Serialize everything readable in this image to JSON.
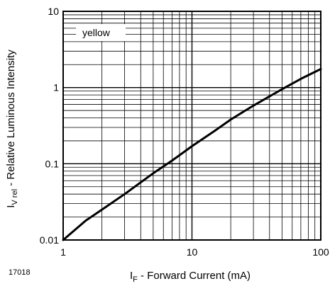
{
  "chart_data": {
    "type": "line",
    "title": "",
    "figure_id": "17018",
    "xlabel": {
      "main": "I",
      "sub": "F",
      "rest": " - Forward Current (mA)"
    },
    "ylabel": {
      "main": "I",
      "sub": "V rel",
      "rest": " - Relative Luminous Intensity"
    },
    "xscale": "log",
    "yscale": "log",
    "xlim": [
      1,
      100
    ],
    "ylim": [
      0.01,
      10
    ],
    "x_ticks": [
      {
        "value": 1,
        "label": "1"
      },
      {
        "value": 10,
        "label": "10"
      },
      {
        "value": 100,
        "label": "100"
      }
    ],
    "y_ticks": [
      {
        "value": 0.01,
        "label": "0.01"
      },
      {
        "value": 0.1,
        "label": "0.1"
      },
      {
        "value": 1,
        "label": "1"
      },
      {
        "value": 10,
        "label": "10"
      }
    ],
    "grid": true,
    "legend": {
      "placement": "top-left",
      "entries": [
        "yellow"
      ]
    },
    "series": [
      {
        "name": "yellow",
        "color": "#000000",
        "x": [
          1,
          1.5,
          2,
          3,
          5,
          7,
          10,
          15,
          20,
          30,
          50,
          70,
          100
        ],
        "y": [
          0.01,
          0.018,
          0.025,
          0.04,
          0.075,
          0.11,
          0.17,
          0.27,
          0.38,
          0.58,
          0.95,
          1.3,
          1.75
        ]
      }
    ]
  }
}
